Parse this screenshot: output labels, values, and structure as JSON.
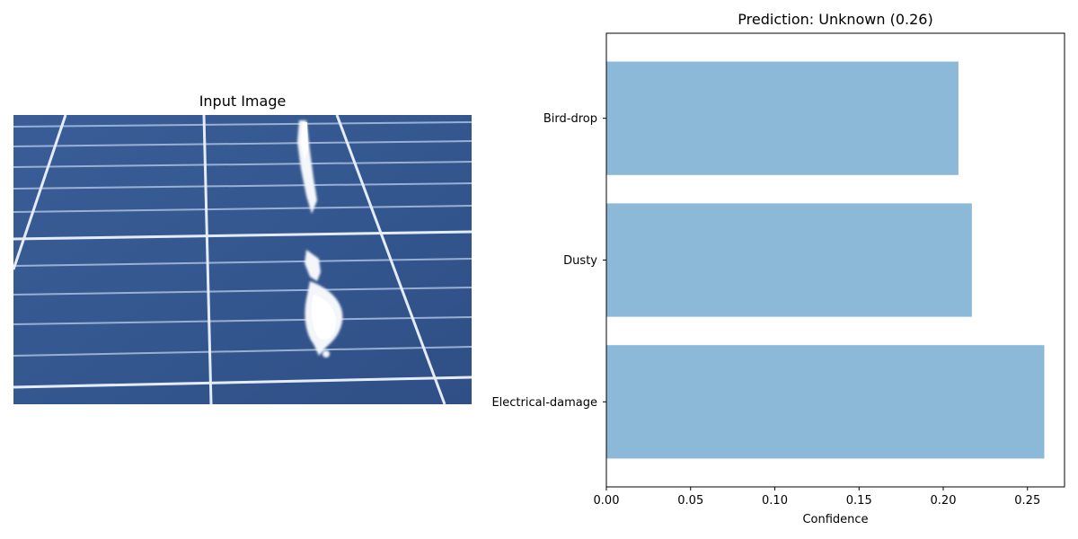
{
  "figure": {
    "image_panel": {
      "title": "Input Image"
    }
  },
  "chart_data": {
    "type": "bar",
    "orientation": "horizontal",
    "title": "Prediction: Unknown (0.26)",
    "xlabel": "Confidence",
    "ylabel": "",
    "categories": [
      "Electrical-damage",
      "Dusty",
      "Bird-drop"
    ],
    "values": [
      0.26,
      0.217,
      0.209
    ],
    "xlim": [
      0,
      0.272
    ],
    "xticks": [
      0.0,
      0.05,
      0.1,
      0.15,
      0.2,
      0.25
    ],
    "xtick_labels": [
      "0.00",
      "0.05",
      "0.10",
      "0.15",
      "0.20",
      "0.25"
    ],
    "bar_color": "#8db9d9",
    "grid": false
  }
}
